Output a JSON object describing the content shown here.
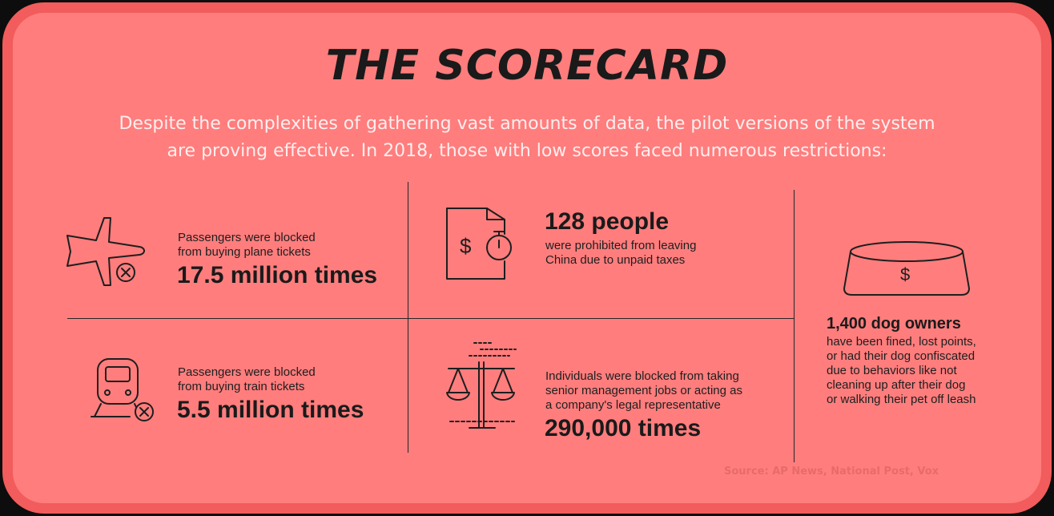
{
  "header": {
    "title": "THE SCORECARD",
    "subtitle_line1": "Despite the complexities of gathering vast amounts of data, the pilot versions of the system",
    "subtitle_line2": "are proving effective. In 2018, those with low scores faced numerous restrictions:"
  },
  "stats": {
    "plane": {
      "icon": "plane-blocked-icon",
      "line1": "Passengers were blocked",
      "line2": "from buying plane tickets",
      "figure": "17.5 million times"
    },
    "taxes": {
      "icon": "unpaid-taxes-icon",
      "figure": "128 people",
      "line1": "were prohibited from leaving",
      "line2": "China due to unpaid taxes"
    },
    "train": {
      "icon": "train-blocked-icon",
      "line1": "Passengers were blocked",
      "line2": "from buying train tickets",
      "figure": "5.5 million times"
    },
    "management": {
      "icon": "scales-icon",
      "line1": "Individuals were blocked from taking",
      "line2": "senior management jobs or acting as",
      "line3": "a company's legal representative",
      "figure": "290,000 times"
    },
    "dogs": {
      "icon": "dog-bowl-icon",
      "figure": "1,400 dog owners",
      "line1": "have been fined, lost points,",
      "line2": "or had their dog confiscated",
      "line3": "due to behaviors like not",
      "line4": "cleaning up after their dog",
      "line5": "or walking their pet off leash"
    }
  },
  "footer": {
    "source": "Source: AP News, National Post, Vox"
  },
  "colors": {
    "background": "#ff7d7d",
    "border": "#f25c5c",
    "text_dark": "#1a1a1a",
    "subtitle_text": "#ffeeee"
  }
}
